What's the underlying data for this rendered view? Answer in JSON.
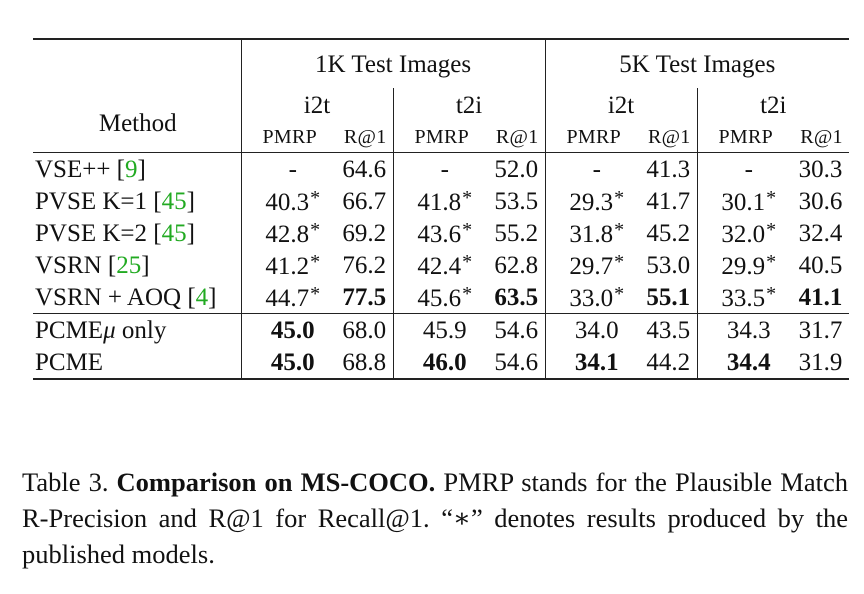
{
  "table": {
    "groups": [
      "1K Test Images",
      "5K Test Images"
    ],
    "directions": [
      "i2t",
      "t2i",
      "i2t",
      "t2i"
    ],
    "method_header": "Method",
    "metric_headers": [
      "PMRP",
      "R@1",
      "PMRP",
      "R@1",
      "PMRP",
      "R@1",
      "PMRP",
      "R@1"
    ],
    "rows": [
      {
        "method": "VSE++ [",
        "cite": "9",
        "suffix": "]",
        "values": [
          "-",
          "64.6",
          "-",
          "52.0",
          "-",
          "41.3",
          "-",
          "30.3"
        ],
        "stars": [
          false,
          false,
          false,
          false,
          false,
          false,
          false,
          false
        ],
        "bold": [
          false,
          false,
          false,
          false,
          false,
          false,
          false,
          false
        ]
      },
      {
        "method": "PVSE K=1 [",
        "cite": "45",
        "suffix": "]",
        "values": [
          "40.3",
          "66.7",
          "41.8",
          "53.5",
          "29.3",
          "41.7",
          "30.1",
          "30.6"
        ],
        "stars": [
          true,
          false,
          true,
          false,
          true,
          false,
          true,
          false
        ],
        "bold": [
          false,
          false,
          false,
          false,
          false,
          false,
          false,
          false
        ]
      },
      {
        "method": "PVSE K=2 [",
        "cite": "45",
        "suffix": "]",
        "values": [
          "42.8",
          "69.2",
          "43.6",
          "55.2",
          "31.8",
          "45.2",
          "32.0",
          "32.4"
        ],
        "stars": [
          true,
          false,
          true,
          false,
          true,
          false,
          true,
          false
        ],
        "bold": [
          false,
          false,
          false,
          false,
          false,
          false,
          false,
          false
        ]
      },
      {
        "method": "VSRN [",
        "cite": "25",
        "suffix": "]",
        "values": [
          "41.2",
          "76.2",
          "42.4",
          "62.8",
          "29.7",
          "53.0",
          "29.9",
          "40.5"
        ],
        "stars": [
          true,
          false,
          true,
          false,
          true,
          false,
          true,
          false
        ],
        "bold": [
          false,
          false,
          false,
          false,
          false,
          false,
          false,
          false
        ]
      },
      {
        "method": "VSRN + AOQ [",
        "cite": "4",
        "suffix": "]",
        "values": [
          "44.7",
          "77.5",
          "45.6",
          "63.5",
          "33.0",
          "55.1",
          "33.5",
          "41.1"
        ],
        "stars": [
          true,
          false,
          true,
          false,
          true,
          false,
          true,
          false
        ],
        "bold": [
          false,
          true,
          false,
          true,
          false,
          true,
          false,
          true
        ]
      },
      {
        "method": "PCMEμ only",
        "cite": "",
        "suffix": "",
        "values": [
          "45.0",
          "68.0",
          "45.9",
          "54.6",
          "34.0",
          "43.5",
          "34.3",
          "31.7"
        ],
        "stars": [
          false,
          false,
          false,
          false,
          false,
          false,
          false,
          false
        ],
        "bold": [
          true,
          false,
          false,
          false,
          false,
          false,
          false,
          false
        ]
      },
      {
        "method": "PCME",
        "cite": "",
        "suffix": "",
        "values": [
          "45.0",
          "68.8",
          "46.0",
          "54.6",
          "34.1",
          "44.2",
          "34.4",
          "31.9"
        ],
        "stars": [
          false,
          false,
          false,
          false,
          false,
          false,
          false,
          false
        ],
        "bold": [
          true,
          false,
          true,
          false,
          true,
          false,
          true,
          false
        ]
      }
    ],
    "star_symbol": "*"
  },
  "caption": {
    "label": "Table 3. ",
    "title": "Comparison on MS-COCO.",
    "text": " PMRP stands for the Plausible Match R-Precision and R@1 for Recall@1. “∗” denotes results produced by the published models."
  }
}
